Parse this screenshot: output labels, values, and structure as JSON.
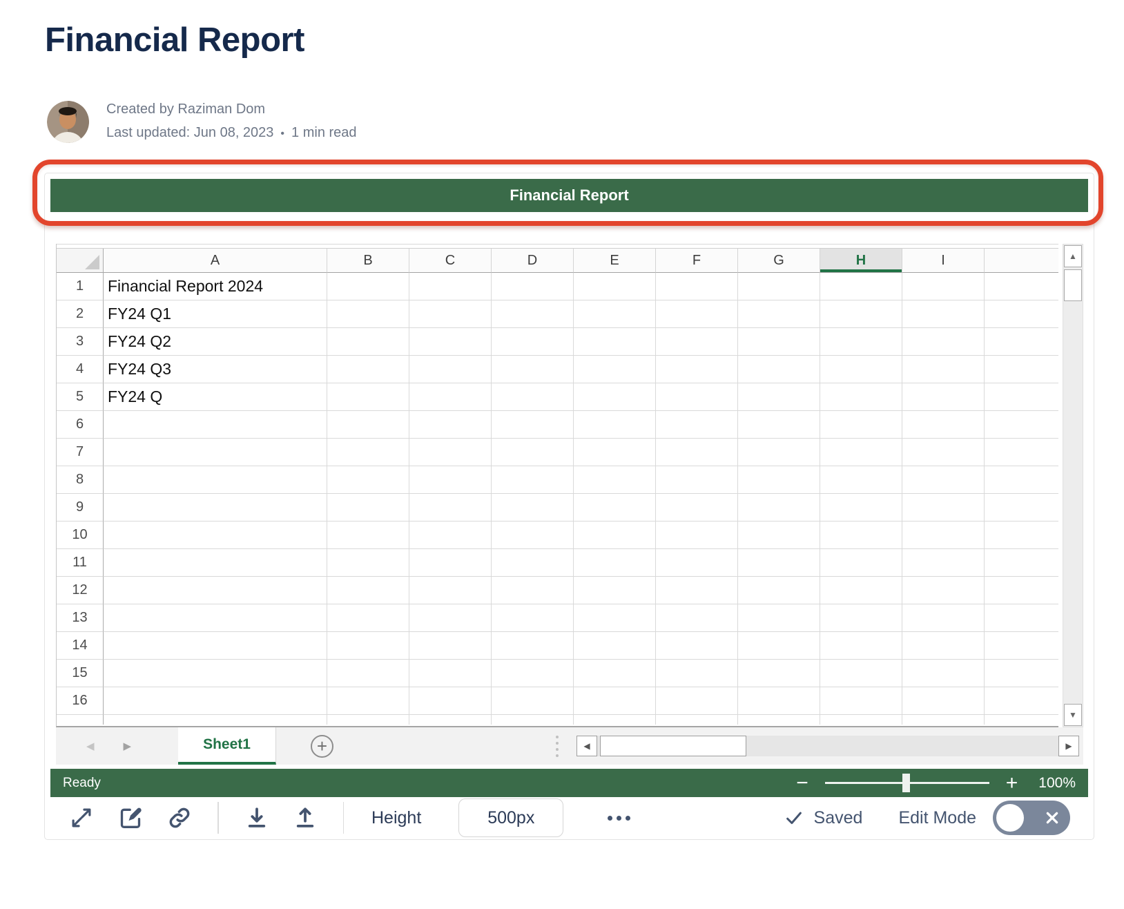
{
  "page": {
    "title": "Financial Report",
    "byline": {
      "created_by": "Created by Raziman Dom",
      "last_updated": "Last updated: Jun 08, 2023",
      "dot": "•",
      "read_time": "1 min read"
    }
  },
  "embed": {
    "header_title": "Financial Report",
    "spreadsheet": {
      "column_headers": [
        "A",
        "B",
        "C",
        "D",
        "E",
        "F",
        "G",
        "H",
        "I"
      ],
      "selected_column": "H",
      "row_count": 16,
      "column_a_values": [
        "Financial Report 2024",
        "FY24 Q1",
        "FY24 Q2",
        "FY24 Q3",
        "FY24 Q",
        "",
        "",
        "",
        "",
        "",
        "",
        "",
        "",
        "",
        "",
        ""
      ],
      "sheet_tab_label": "Sheet1",
      "add_sheet_glyph": "+"
    },
    "icons": {
      "scroll_up": "▲",
      "scroll_down": "▼",
      "scroll_left": "◀",
      "scroll_right": "▶",
      "tab_prev": "◀",
      "tab_next": "▶"
    },
    "status_bar": {
      "status": "Ready",
      "zoom_minus": "−",
      "zoom_plus": "+",
      "zoom_level": "100%"
    },
    "toolbar": {
      "height_label": "Height",
      "height_value": "500px",
      "saved_label": "Saved",
      "edit_mode_label": "Edit Mode"
    },
    "colors": {
      "green_bar": "#3a6b49",
      "excel_green": "#217346",
      "annotation_red": "#e2452c",
      "icon_slate": "#44546f",
      "title_navy": "#15294b"
    }
  }
}
